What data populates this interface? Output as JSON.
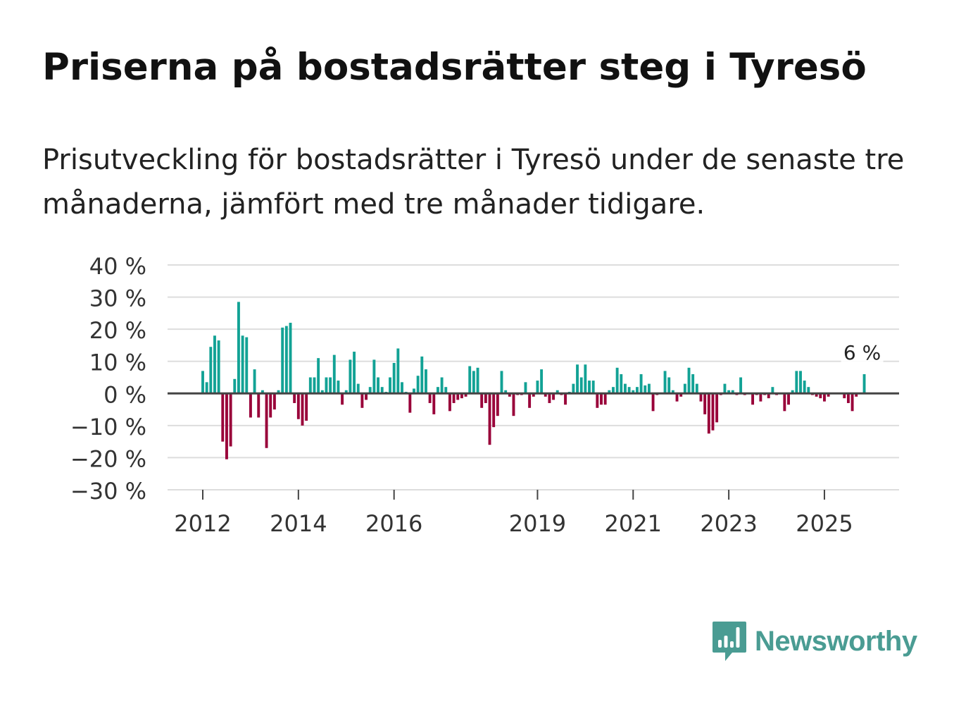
{
  "title": "Priserna på bostadsrätter steg i Tyresö",
  "subtitle": "Prisutveckling för bostadsrätter i Tyresö under de senaste tre månaderna, jämfört med tre månader tidigare.",
  "brand": {
    "name": "Newsworthy",
    "icon": "bar-chart-speech-bubble-icon",
    "color": "#4a9c93"
  },
  "colors": {
    "positive": "#12a295",
    "negative": "#990039",
    "grid": "#dddddd",
    "zero": "#444444",
    "text": "#333333"
  },
  "chart_data": {
    "type": "bar",
    "title": "Priserna på bostadsrätter steg i Tyresö",
    "xlabel": "",
    "ylabel": "",
    "ylim": [
      -30,
      40
    ],
    "yticks": [
      40,
      30,
      20,
      10,
      0,
      -10,
      -20,
      -30
    ],
    "ytick_labels": [
      "40 %",
      "30 %",
      "20 %",
      "10 %",
      "0 %",
      "−10 %",
      "−20 %",
      "−30 %"
    ],
    "xticks": [
      {
        "label": "2012",
        "index": 0
      },
      {
        "label": "2014",
        "index": 24
      },
      {
        "label": "2016",
        "index": 48
      },
      {
        "label": "2019",
        "index": 84
      },
      {
        "label": "2021",
        "index": 108
      },
      {
        "label": "2023",
        "index": 132
      },
      {
        "label": "2025",
        "index": 156
      }
    ],
    "annotation": {
      "text": "6 %",
      "index": 166
    },
    "start": "2012-01",
    "values": [
      7,
      3.5,
      14.5,
      18,
      16.5,
      -15,
      -20.5,
      -16.5,
      4.5,
      28.5,
      18,
      17.5,
      -7.5,
      7.5,
      -7.5,
      1,
      -17,
      -7.5,
      -5,
      1,
      20.5,
      21,
      22,
      -3,
      -8,
      -10,
      -8.5,
      5,
      5,
      11,
      1,
      5,
      5,
      12,
      4,
      -3.5,
      1,
      10.5,
      13,
      3,
      -4.5,
      -2,
      2,
      10.5,
      5,
      2,
      0.5,
      5,
      9.5,
      14,
      3.5,
      0.5,
      -6,
      1.5,
      5.5,
      11.5,
      7.5,
      -3,
      -6.5,
      2,
      5,
      2,
      -5.5,
      -3,
      -2,
      -1.5,
      -1,
      8.5,
      7,
      8,
      -4.5,
      -3,
      -16,
      -10.5,
      -7,
      7,
      1,
      -1,
      -7,
      -0.5,
      -0.5,
      3.5,
      -4.5,
      -1,
      4,
      7.5,
      -1,
      -3,
      -2,
      1,
      -0.5,
      -3.5,
      0.5,
      3,
      9,
      5,
      9,
      4,
      4,
      -4.5,
      -3.5,
      -3.5,
      1,
      2,
      8,
      6,
      3,
      2,
      1,
      2,
      6,
      2.5,
      3,
      -5.5,
      -0.5,
      0,
      7,
      5,
      1,
      -2.5,
      -1,
      3,
      8,
      6,
      3,
      -2.5,
      -6.5,
      -12.5,
      -11.5,
      -9,
      -0.5,
      3,
      1,
      1,
      -0.5,
      5,
      -0.5,
      0,
      -3.5,
      -0.5,
      -2.5,
      -0.5,
      -1.5,
      2,
      -0.5,
      0,
      -5.5,
      -3.5,
      1,
      7,
      7,
      4,
      2,
      -0.5,
      -1,
      -1.5,
      -2.5,
      -1,
      0,
      0,
      0,
      -1.5,
      -3,
      -5.5,
      -1,
      0,
      6
    ]
  }
}
